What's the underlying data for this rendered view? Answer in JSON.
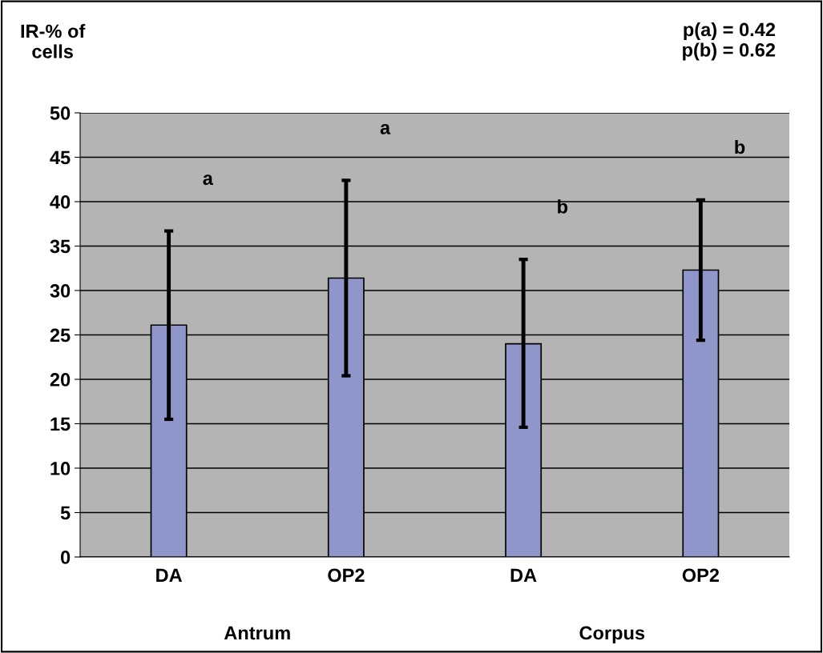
{
  "chart_data": {
    "type": "bar",
    "ylabel": "IR-% of\ncells",
    "categories": [
      "DA",
      "OP2",
      "DA",
      "OP2"
    ],
    "values": [
      26.1,
      31.4,
      24.0,
      32.3
    ],
    "errors": [
      [
        15.5,
        36.7
      ],
      [
        20.4,
        42.4
      ],
      [
        14.6,
        33.5
      ],
      [
        24.4,
        40.2
      ]
    ],
    "color": "#8e96ca",
    "ylim": [
      0,
      50
    ],
    "yticks": [
      0,
      5,
      10,
      15,
      20,
      25,
      30,
      35,
      40,
      45,
      50
    ],
    "grid": "y",
    "legend": false,
    "annotations": [
      "a",
      "a",
      "b",
      "b",
      "p(a) = 0.42\np(b) = 0.62",
      "Antrum",
      "Corpus"
    ]
  }
}
